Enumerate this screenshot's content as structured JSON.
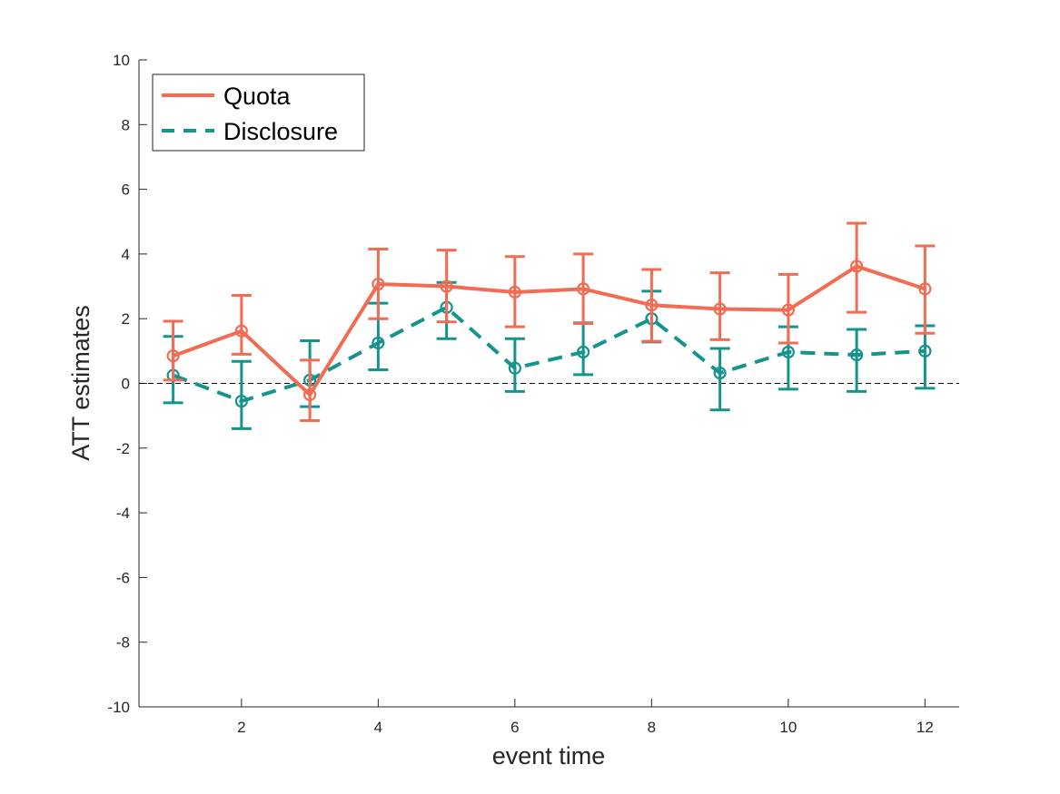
{
  "chart_data": {
    "type": "line",
    "title": "",
    "xlabel": "event time",
    "ylabel": "ATT estimates",
    "xlim": [
      0.5,
      12.5
    ],
    "ylim": [
      -10,
      10
    ],
    "x_ticks": [
      2,
      4,
      6,
      8,
      10,
      12
    ],
    "y_ticks": [
      -10,
      -8,
      -6,
      -4,
      -2,
      0,
      2,
      4,
      6,
      8,
      10
    ],
    "x_tick_labels": [
      "2",
      "4",
      "6",
      "8",
      "10",
      "12"
    ],
    "y_tick_labels": [
      "-10",
      "-8",
      "-6",
      "-4",
      "-2",
      "0",
      "2",
      "4",
      "6",
      "8",
      "10"
    ],
    "grid": false,
    "legend_position": "top-left",
    "reference_line": {
      "y": 0,
      "style": "dashed",
      "color": "#000000"
    },
    "x": [
      1,
      2,
      3,
      4,
      5,
      6,
      7,
      8,
      9,
      10,
      11,
      12
    ],
    "series": [
      {
        "name": "Quota",
        "color": "#f26b52",
        "line_style": "solid",
        "marker": "circle",
        "values": [
          0.85,
          1.62,
          -0.35,
          3.07,
          3.0,
          2.82,
          2.92,
          2.42,
          2.3,
          2.27,
          3.62,
          2.92
        ],
        "lower": [
          0.1,
          0.9,
          -1.15,
          2.0,
          1.9,
          1.75,
          1.85,
          1.3,
          1.35,
          1.25,
          2.2,
          1.55
        ],
        "upper": [
          1.92,
          2.72,
          0.72,
          4.15,
          4.12,
          3.92,
          4.0,
          3.52,
          3.42,
          3.37,
          4.95,
          4.25
        ]
      },
      {
        "name": "Disclosure",
        "color": "#15948d",
        "line_style": "dashed",
        "marker": "circle",
        "values": [
          0.25,
          -0.55,
          0.1,
          1.25,
          2.35,
          0.47,
          0.97,
          2.0,
          0.32,
          0.97,
          0.88,
          1.0
        ],
        "lower": [
          -0.6,
          -1.4,
          -0.72,
          0.42,
          1.38,
          -0.25,
          0.27,
          1.28,
          -0.82,
          -0.18,
          -0.25,
          -0.15
        ],
        "upper": [
          1.45,
          0.68,
          1.32,
          2.48,
          3.12,
          1.38,
          1.87,
          2.85,
          1.08,
          1.75,
          1.67,
          1.78
        ]
      }
    ]
  }
}
